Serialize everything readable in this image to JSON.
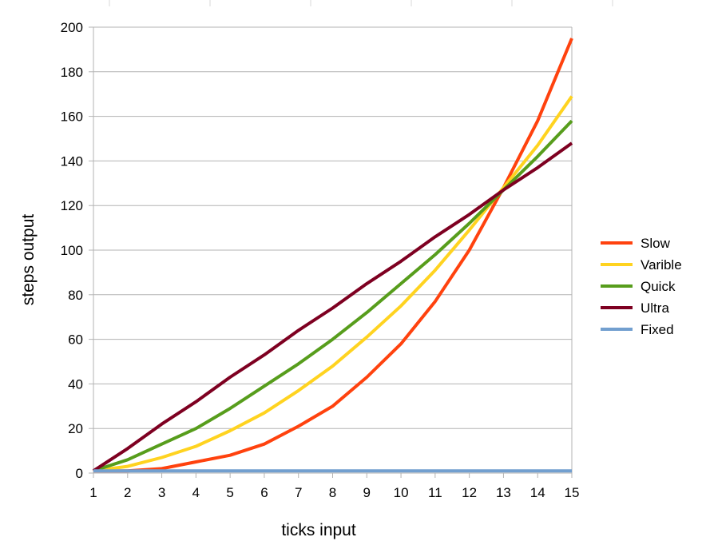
{
  "chart_data": {
    "type": "line",
    "title": "",
    "xlabel": "ticks input",
    "ylabel": "steps output",
    "x": [
      1,
      2,
      3,
      4,
      5,
      6,
      7,
      8,
      9,
      10,
      11,
      12,
      13,
      14,
      15
    ],
    "xlim": [
      1,
      15
    ],
    "ylim": [
      0,
      200
    ],
    "yticks": [
      0,
      20,
      40,
      60,
      80,
      100,
      120,
      140,
      160,
      180,
      200
    ],
    "grid": true,
    "legend": "right",
    "series": [
      {
        "name": "Slow",
        "color": "#ff420e",
        "values": [
          1,
          1,
          2,
          5,
          8,
          13,
          21,
          30,
          43,
          58,
          77,
          100,
          128,
          158,
          195
        ]
      },
      {
        "name": "Varible",
        "color": "#ffd320",
        "values": [
          1,
          3,
          7,
          12,
          19,
          27,
          37,
          48,
          61,
          75,
          91,
          109,
          128,
          147,
          169
        ]
      },
      {
        "name": "Quick",
        "color": "#579d1c",
        "values": [
          1,
          6,
          13,
          20,
          29,
          39,
          49,
          60,
          72,
          85,
          98,
          112,
          127,
          142,
          158
        ]
      },
      {
        "name": "Ultra",
        "color": "#7e0021",
        "values": [
          1,
          11,
          22,
          32,
          43,
          53,
          64,
          74,
          85,
          95,
          106,
          116,
          127,
          137,
          148
        ]
      },
      {
        "name": "Fixed",
        "color": "#729fcf",
        "values": [
          1,
          1,
          1,
          1,
          1,
          1,
          1,
          1,
          1,
          1,
          1,
          1,
          1,
          1,
          1
        ]
      }
    ]
  }
}
